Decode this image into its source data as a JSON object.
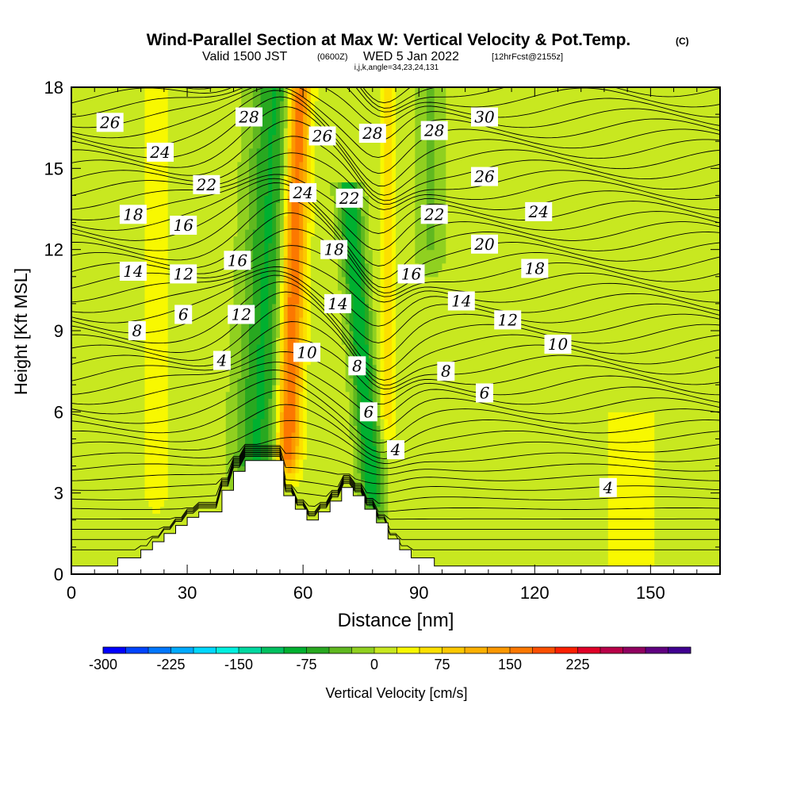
{
  "title": "Wind-Parallel Section at Max W: Vertical Velocity & Pot.Temp.",
  "title_units": "(C)",
  "subtitle_valid": "Valid 1500 JST",
  "subtitle_utc": "(0600Z)",
  "subtitle_date": "WED 5 Jan 2022",
  "subtitle_fcst": "[12hrFcst@2155z]",
  "subtitle_ijk": "i,j,k,angle=34,23,24,131",
  "chart_data": {
    "type": "heatmap",
    "xlabel": "Distance [nm]",
    "ylabel": "Height [Kft MSL]",
    "xlim": [
      0,
      168
    ],
    "ylim": [
      0,
      18
    ],
    "xticks": [
      0,
      30,
      60,
      90,
      120,
      150
    ],
    "yticks": [
      0,
      3,
      6,
      9,
      12,
      15,
      18
    ],
    "colorbar": {
      "label": "Vertical Velocity [cm/s]",
      "min": -300,
      "max": 250,
      "step": 25,
      "tick_values": [
        -300,
        -225,
        -150,
        -75,
        0,
        75,
        150,
        225
      ],
      "colors": [
        "#0000ff",
        "#0044ff",
        "#0077ff",
        "#00aaff",
        "#00d8ff",
        "#00f0e0",
        "#00d8a0",
        "#00c060",
        "#00b030",
        "#28a820",
        "#60b820",
        "#90d020",
        "#c8e820",
        "#f8f800",
        "#fce000",
        "#fcc800",
        "#fcb000",
        "#fc9800",
        "#fc7800",
        "#fc5000",
        "#fc2000",
        "#e00028",
        "#b80048",
        "#900060",
        "#600080",
        "#400090"
      ]
    },
    "terrain_outline": [
      [
        0,
        0.3
      ],
      [
        12,
        0.3
      ],
      [
        12,
        0.6
      ],
      [
        18,
        0.6
      ],
      [
        18,
        0.9
      ],
      [
        21,
        0.9
      ],
      [
        21,
        1.2
      ],
      [
        24,
        1.2
      ],
      [
        24,
        1.5
      ],
      [
        27,
        1.5
      ],
      [
        27,
        1.8
      ],
      [
        30,
        1.8
      ],
      [
        30,
        2.1
      ],
      [
        33,
        2.1
      ],
      [
        33,
        2.3
      ],
      [
        39,
        2.3
      ],
      [
        39,
        3.1
      ],
      [
        42,
        3.1
      ],
      [
        42,
        3.8
      ],
      [
        45,
        3.8
      ],
      [
        45,
        4.2
      ],
      [
        55,
        4.2
      ],
      [
        55,
        2.9
      ],
      [
        58,
        2.9
      ],
      [
        58,
        2.4
      ],
      [
        61,
        2.4
      ],
      [
        61,
        2.0
      ],
      [
        64,
        2.0
      ],
      [
        64,
        2.3
      ],
      [
        67,
        2.3
      ],
      [
        67,
        2.7
      ],
      [
        70,
        2.7
      ],
      [
        70,
        3.2
      ],
      [
        73,
        3.2
      ],
      [
        73,
        2.9
      ],
      [
        76,
        2.9
      ],
      [
        76,
        2.4
      ],
      [
        79,
        2.4
      ],
      [
        79,
        1.9
      ],
      [
        82,
        1.9
      ],
      [
        82,
        1.3
      ],
      [
        85,
        1.3
      ],
      [
        85,
        0.9
      ],
      [
        88,
        0.9
      ],
      [
        88,
        0.6
      ],
      [
        94,
        0.6
      ],
      [
        94,
        0.3
      ],
      [
        168,
        0.3
      ]
    ],
    "velocity_features": [
      {
        "x": 48,
        "y_bottom": 4.0,
        "y_top": 18,
        "lean": 5,
        "half_width": 6,
        "value": -90
      },
      {
        "x": 56,
        "y_bottom": 4.5,
        "y_top": 18,
        "lean": 3,
        "half_width": 3,
        "value": 180
      },
      {
        "x": 78,
        "y_bottom": 3.0,
        "y_top": 14,
        "lean": -6,
        "half_width": 3,
        "value": -110
      },
      {
        "x": 82,
        "y_bottom": 6.0,
        "y_top": 18,
        "lean": 0,
        "half_width": 2,
        "value": 60
      },
      {
        "x": 93,
        "y_bottom": 12.0,
        "y_top": 18,
        "lean": 0,
        "half_width": 4,
        "value": -40
      },
      {
        "x": 22,
        "y_bottom": 3.0,
        "y_top": 18,
        "lean": 0,
        "half_width": 4,
        "value": 25
      },
      {
        "x": 145,
        "y_bottom": 0.3,
        "y_top": 5.5,
        "lean": 0,
        "half_width": 8,
        "value": 25
      }
    ],
    "isentrope_labels": [
      {
        "text": "26",
        "x": 10,
        "y": 16.7
      },
      {
        "text": "24",
        "x": 23,
        "y": 15.6
      },
      {
        "text": "22",
        "x": 35,
        "y": 14.4
      },
      {
        "text": "18",
        "x": 16,
        "y": 13.3
      },
      {
        "text": "16",
        "x": 29,
        "y": 12.9
      },
      {
        "text": "14",
        "x": 16,
        "y": 11.2
      },
      {
        "text": "12",
        "x": 29,
        "y": 11.1
      },
      {
        "text": "8",
        "x": 17,
        "y": 9.0
      },
      {
        "text": "6",
        "x": 29,
        "y": 9.6
      },
      {
        "text": "28",
        "x": 46,
        "y": 16.9
      },
      {
        "text": "16",
        "x": 43,
        "y": 11.6
      },
      {
        "text": "12",
        "x": 44,
        "y": 9.6
      },
      {
        "text": "4",
        "x": 39,
        "y": 7.9
      },
      {
        "text": "26",
        "x": 65,
        "y": 16.2
      },
      {
        "text": "24",
        "x": 60,
        "y": 14.1
      },
      {
        "text": "10",
        "x": 61,
        "y": 8.2
      },
      {
        "text": "28",
        "x": 78,
        "y": 16.3
      },
      {
        "text": "22",
        "x": 72,
        "y": 13.9
      },
      {
        "text": "18",
        "x": 68,
        "y": 12.0
      },
      {
        "text": "14",
        "x": 69,
        "y": 10.0
      },
      {
        "text": "8",
        "x": 74,
        "y": 7.7
      },
      {
        "text": "6",
        "x": 77,
        "y": 6.0
      },
      {
        "text": "4",
        "x": 84,
        "y": 4.6
      },
      {
        "text": "28",
        "x": 94,
        "y": 16.4
      },
      {
        "text": "30",
        "x": 107,
        "y": 16.9
      },
      {
        "text": "26",
        "x": 107,
        "y": 14.7
      },
      {
        "text": "22",
        "x": 94,
        "y": 13.3
      },
      {
        "text": "24",
        "x": 121,
        "y": 13.4
      },
      {
        "text": "20",
        "x": 107,
        "y": 12.2
      },
      {
        "text": "16",
        "x": 88,
        "y": 11.1
      },
      {
        "text": "18",
        "x": 120,
        "y": 11.3
      },
      {
        "text": "14",
        "x": 101,
        "y": 10.1
      },
      {
        "text": "12",
        "x": 113,
        "y": 9.4
      },
      {
        "text": "10",
        "x": 126,
        "y": 8.5
      },
      {
        "text": "8",
        "x": 97,
        "y": 7.5
      },
      {
        "text": "6",
        "x": 107,
        "y": 6.7
      },
      {
        "text": "4",
        "x": 139,
        "y": 3.2
      }
    ]
  }
}
